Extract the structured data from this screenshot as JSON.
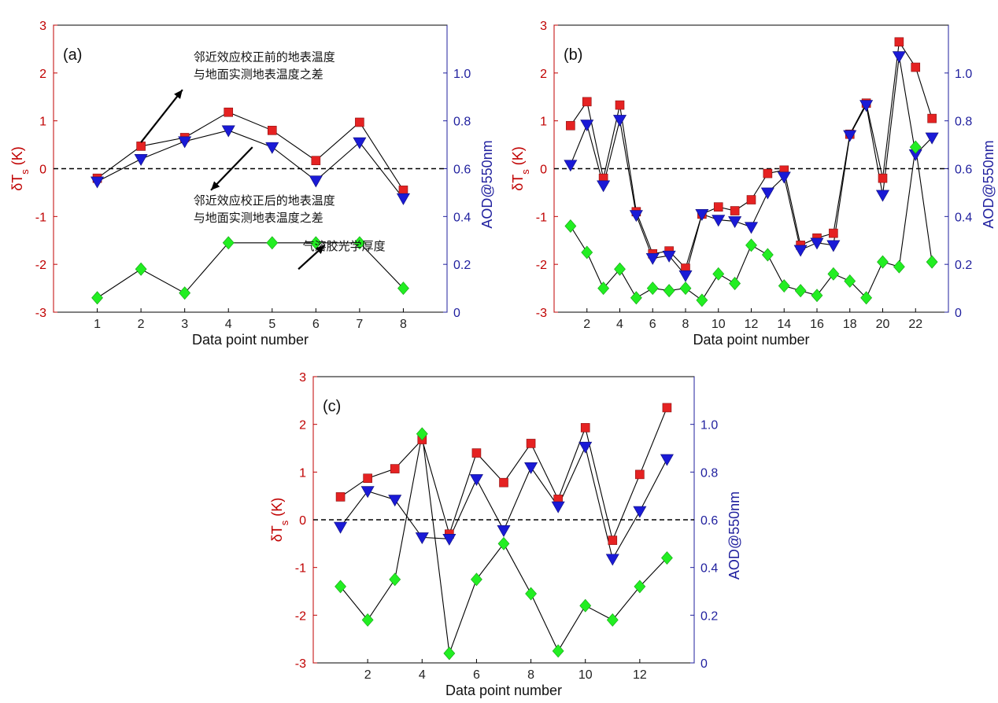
{
  "colors": {
    "before": "#e52222",
    "after": "#1a1ad6",
    "aod": "#22ee22",
    "left_axis": "#c00000",
    "right_axis": "#1f1f9e",
    "line": "#000000"
  },
  "chart_data": [
    {
      "type": "line",
      "panel_label": "(a)",
      "xlabel": "Data point number",
      "ylabel_main": "δT",
      "ylabel_sub": "s",
      "ylabel_unit": " (K)",
      "y2label": "AOD@550nm",
      "ylim": [
        -3,
        3
      ],
      "y2lim": [
        0,
        1.2
      ],
      "xlim": [
        0,
        9
      ],
      "xticks": [
        1,
        2,
        3,
        4,
        5,
        6,
        7,
        8
      ],
      "yticks": [
        -3,
        -2,
        -1,
        0,
        1,
        2,
        3
      ],
      "y2ticks": [
        0,
        0.2,
        0.4,
        0.6,
        0.8,
        1.0
      ],
      "y2ticklabels": [
        "0",
        "0.2",
        "0.4",
        "0.6",
        "0.8",
        "1.0"
      ],
      "zero_line": true,
      "series": [
        {
          "key": "before",
          "marker": "square",
          "axis": "left",
          "x": [
            1,
            2,
            3,
            4,
            5,
            6,
            7,
            8
          ],
          "values": [
            -0.2,
            0.47,
            0.65,
            1.18,
            0.8,
            0.17,
            0.97,
            -0.45
          ]
        },
        {
          "key": "after",
          "marker": "triangle-down",
          "axis": "left",
          "x": [
            1,
            2,
            3,
            4,
            5,
            6,
            7,
            8
          ],
          "values": [
            -0.27,
            0.2,
            0.57,
            0.8,
            0.45,
            -0.25,
            0.55,
            -0.62
          ]
        },
        {
          "key": "aod",
          "marker": "diamond",
          "axis": "right",
          "x": [
            1,
            2,
            3,
            4,
            5,
            6,
            7,
            8
          ],
          "values": [
            0.06,
            0.18,
            0.08,
            0.29,
            0.29,
            0.29,
            0.29,
            0.1
          ]
        }
      ],
      "annotations": [
        {
          "lines": [
            "邻近效应校正前的地表温度",
            "与地面实测地表温度之差"
          ],
          "tx": 3.2,
          "ty": 2.25,
          "ax": 2,
          "ay": 0.55,
          "hx": 2.95,
          "hy": 1.65
        },
        {
          "lines": [
            "邻近效应校正后的地表温度",
            "与地面实测地表温度之差"
          ],
          "tx": 3.2,
          "ty": -0.75,
          "ax": 4.55,
          "ay": 0.45,
          "hx": 3.6,
          "hy": -0.45
        },
        {
          "lines": [
            "气溶胶光学厚度"
          ],
          "tx": 5.7,
          "ty": -1.7,
          "ax": 5.6,
          "ay": -2.1,
          "hx": 6.2,
          "hy": -1.6
        }
      ]
    },
    {
      "type": "line",
      "panel_label": "(b)",
      "xlabel": "Data point number",
      "ylabel_main": "δT",
      "ylabel_sub": "s",
      "ylabel_unit": " (K)",
      "y2label": "AOD@550nm",
      "ylim": [
        -3,
        3
      ],
      "y2lim": [
        0,
        1.2
      ],
      "xlim": [
        0,
        24
      ],
      "xticks": [
        2,
        4,
        6,
        8,
        10,
        12,
        14,
        16,
        18,
        20,
        22
      ],
      "yticks": [
        -3,
        -2,
        -1,
        0,
        1,
        2,
        3
      ],
      "y2ticks": [
        0,
        0.2,
        0.4,
        0.6,
        0.8,
        1.0
      ],
      "y2ticklabels": [
        "0",
        "0.2",
        "0.4",
        "0.6",
        "0.8",
        "1.0"
      ],
      "zero_line": true,
      "series": [
        {
          "key": "before",
          "marker": "square",
          "axis": "left",
          "x": [
            1,
            2,
            3,
            4,
            5,
            6,
            7,
            8,
            9,
            10,
            11,
            12,
            13,
            14,
            15,
            16,
            17,
            18,
            19,
            20,
            21,
            22,
            23
          ],
          "values": [
            0.9,
            1.4,
            -0.2,
            1.33,
            -0.9,
            -1.78,
            -1.72,
            -2.08,
            -0.95,
            -0.8,
            -0.88,
            -0.65,
            -0.1,
            -0.03,
            -1.6,
            -1.45,
            -1.35,
            0.72,
            1.37,
            -0.2,
            2.65,
            2.12,
            1.05
          ]
        },
        {
          "key": "after",
          "marker": "triangle-down",
          "axis": "left",
          "x": [
            1,
            2,
            3,
            4,
            5,
            6,
            7,
            8,
            9,
            10,
            11,
            12,
            13,
            14,
            15,
            16,
            17,
            18,
            19,
            20,
            21,
            22,
            23
          ],
          "values": [
            0.08,
            0.92,
            -0.35,
            1.02,
            -0.97,
            -1.87,
            -1.82,
            -2.23,
            -0.95,
            -1.07,
            -1.1,
            -1.22,
            -0.5,
            -0.17,
            -1.7,
            -1.55,
            -1.6,
            0.7,
            1.33,
            -0.55,
            2.35,
            0.3,
            0.65
          ]
        },
        {
          "key": "aod",
          "marker": "diamond",
          "axis": "right",
          "x": [
            1,
            2,
            3,
            4,
            5,
            6,
            7,
            8,
            9,
            10,
            11,
            12,
            13,
            14,
            15,
            16,
            17,
            18,
            19,
            20,
            21,
            22,
            23
          ],
          "values": [
            0.36,
            0.25,
            0.1,
            0.18,
            0.06,
            0.1,
            0.09,
            0.1,
            0.05,
            0.16,
            0.12,
            0.28,
            0.24,
            0.11,
            0.09,
            0.07,
            0.16,
            0.13,
            0.06,
            0.21,
            0.19,
            0.69,
            0.21
          ]
        }
      ],
      "annotations": []
    },
    {
      "type": "line",
      "panel_label": "(c)",
      "xlabel": "Data point number",
      "ylabel_main": "δT",
      "ylabel_sub": "s",
      "ylabel_unit": " (K)",
      "y2label": "AOD@550nm",
      "ylim": [
        -3,
        3
      ],
      "y2lim": [
        0,
        1.2
      ],
      "xlim": [
        0,
        14
      ],
      "xticks": [
        2,
        4,
        6,
        8,
        10,
        12
      ],
      "yticks": [
        -3,
        -2,
        -1,
        0,
        1,
        2,
        3
      ],
      "y2ticks": [
        0,
        0.2,
        0.4,
        0.6,
        0.8,
        1.0
      ],
      "y2ticklabels": [
        "0",
        "0.2",
        "0.4",
        "0.6",
        "0.8",
        "1.0"
      ],
      "zero_line": true,
      "series": [
        {
          "key": "before",
          "marker": "square",
          "axis": "left",
          "x": [
            1,
            2,
            3,
            4,
            5,
            6,
            7,
            8,
            9,
            10,
            11,
            12,
            13
          ],
          "values": [
            0.48,
            0.87,
            1.07,
            1.68,
            -0.3,
            1.4,
            0.78,
            1.6,
            0.43,
            1.93,
            -0.43,
            0.95,
            2.35
          ]
        },
        {
          "key": "after",
          "marker": "triangle-down",
          "axis": "left",
          "x": [
            1,
            2,
            3,
            4,
            5,
            6,
            7,
            8,
            9,
            10,
            11,
            12,
            13
          ],
          "values": [
            -0.15,
            0.6,
            0.42,
            -0.37,
            -0.4,
            0.85,
            -0.22,
            1.1,
            0.28,
            1.53,
            -0.82,
            0.18,
            1.27
          ]
        },
        {
          "key": "aod",
          "marker": "diamond",
          "axis": "right",
          "x": [
            1,
            2,
            3,
            4,
            5,
            6,
            7,
            8,
            9,
            10,
            11,
            12,
            13
          ],
          "values": [
            0.32,
            0.18,
            0.35,
            0.96,
            0.04,
            0.35,
            0.5,
            0.29,
            0.05,
            0.24,
            0.18,
            0.32,
            0.44
          ]
        }
      ],
      "annotations": []
    }
  ]
}
